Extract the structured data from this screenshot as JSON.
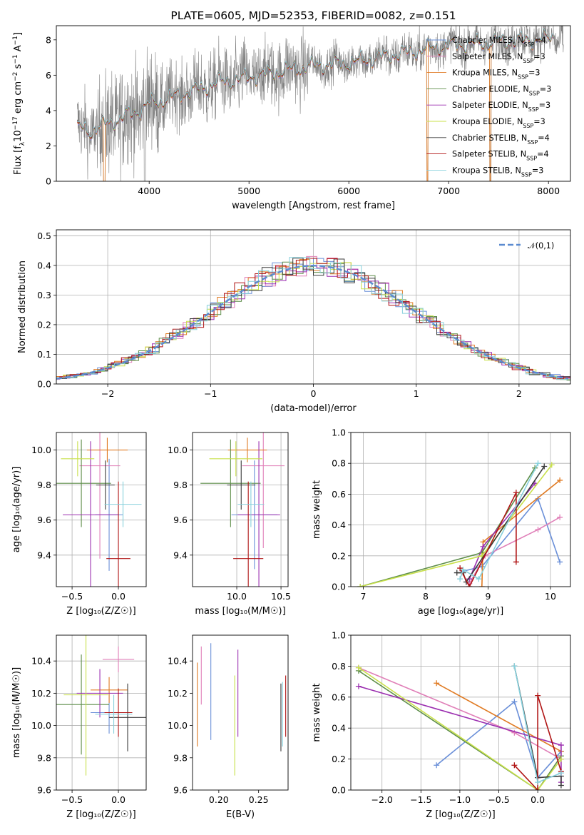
{
  "colors": {
    "chabrier_miles": "#6a8fd8",
    "salpeter_miles": "#e07fb8",
    "kroupa_miles": "#e07a22",
    "chabrier_elodie": "#5e8e4a",
    "salpeter_elodie": "#9b2fb0",
    "kroupa_elodie": "#c8e04a",
    "chabrier_stelib": "#3a3a3a",
    "salpeter_stelib": "#b01515",
    "kroupa_stelib": "#86d0dc",
    "spectrum_obs": "#808080",
    "gaussian": "#5b8bd0"
  },
  "chart_data": [
    {
      "type": "line",
      "title": "PLATE=0605, MJD=52353, FIBERID=0082, z=0.151",
      "xlabel": "wavelength [Angstrom, rest frame]",
      "ylabel_html": "Flux [f_λ 10^{-17} erg cm^{-2} s^{-1} A^{-1}]",
      "xlim": [
        3070,
        8220
      ],
      "ylim": [
        0,
        8.8
      ],
      "xticks": [
        "4000",
        "5000",
        "6000",
        "7000",
        "8000"
      ],
      "yticks": [
        "0",
        "2",
        "4",
        "6",
        "8"
      ],
      "grid": false,
      "legend_position": "top-right",
      "legend": [
        {
          "pre": "Chabrier MILES, N",
          "sub": "SSP",
          "post": "=4",
          "color_key": "chabrier_miles"
        },
        {
          "pre": "Salpeter MILES, N",
          "sub": "SSP",
          "post": "=3",
          "color_key": "salpeter_miles"
        },
        {
          "pre": "Kroupa MILES, N",
          "sub": "SSP",
          "post": "=3",
          "color_key": "kroupa_miles"
        },
        {
          "pre": "Chabrier ELODIE, N",
          "sub": "SSP",
          "post": "=3",
          "color_key": "chabrier_elodie"
        },
        {
          "pre": "Salpeter ELODIE, N",
          "sub": "SSP",
          "post": "=3",
          "color_key": "salpeter_elodie"
        },
        {
          "pre": "Kroupa ELODIE, N",
          "sub": "SSP",
          "post": "=3",
          "color_key": "kroupa_elodie"
        },
        {
          "pre": "Chabrier STELIB, N",
          "sub": "SSP",
          "post": "=4",
          "color_key": "chabrier_stelib"
        },
        {
          "pre": "Salpeter STELIB, N",
          "sub": "SSP",
          "post": "=4",
          "color_key": "salpeter_stelib"
        },
        {
          "pre": "Kroupa STELIB, N",
          "sub": "SSP",
          "post": "=3",
          "color_key": "kroupa_stelib"
        }
      ],
      "model_continuum_points": [
        [
          3280,
          3.1
        ],
        [
          3400,
          2.8
        ],
        [
          3550,
          3.2
        ],
        [
          3700,
          3.5
        ],
        [
          3800,
          3.8
        ],
        [
          3900,
          4.0
        ],
        [
          4000,
          4.4
        ],
        [
          4100,
          4.5
        ],
        [
          4200,
          4.7
        ],
        [
          4300,
          4.9
        ],
        [
          4500,
          5.2
        ],
        [
          4700,
          5.6
        ],
        [
          4860,
          5.7
        ],
        [
          5000,
          5.9
        ],
        [
          5200,
          6.1
        ],
        [
          5400,
          6.3
        ],
        [
          5600,
          6.5
        ],
        [
          5800,
          6.6
        ],
        [
          6000,
          6.7
        ],
        [
          6200,
          6.9
        ],
        [
          6400,
          7.1
        ],
        [
          6600,
          7.3
        ],
        [
          6800,
          7.5
        ],
        [
          7000,
          7.7
        ],
        [
          7300,
          7.8
        ],
        [
          7500,
          7.9
        ],
        [
          7800,
          8.0
        ],
        [
          8050,
          8.1
        ]
      ],
      "model_range": [
        3280,
        8050
      ],
      "observed_range": [
        3280,
        8150
      ],
      "observed_noise_scale": 1.4
    },
    {
      "type": "bar",
      "subtype": "step-histogram",
      "xlabel": "(data-model)/error",
      "ylabel": "Normed distribution",
      "xlim": [
        -2.5,
        2.5
      ],
      "ylim": [
        0,
        0.52
      ],
      "xticks": [
        "−2",
        "−1",
        "0",
        "1",
        "2"
      ],
      "yticks": [
        "0.0",
        "0.1",
        "0.2",
        "0.3",
        "0.4",
        "0.5"
      ],
      "grid": true,
      "legend_position": "top-right",
      "legend": "𝒩(0,1)",
      "bin_width": 0.1
    },
    {
      "type": "scatter",
      "subtype": "error-bars",
      "xlabel": "Z [log₁₀(Z/Z☉)]",
      "ylabel": "age  [log₁₀(age/yr)]",
      "xlim": [
        -0.67,
        0.3
      ],
      "ylim": [
        9.22,
        10.1
      ],
      "xticks": [
        "−0.5",
        "0.0"
      ],
      "yticks": [
        "9.4",
        "9.6",
        "9.8",
        "10.0"
      ],
      "grid": true,
      "points": [
        {
          "k": "chabrier_miles",
          "x": -0.1,
          "y": 9.63,
          "xe": 0.15,
          "ye": 0.32
        },
        {
          "k": "salpeter_miles",
          "x": -0.2,
          "y": 9.91,
          "xe": 0.22,
          "ye": 0.53
        },
        {
          "k": "kroupa_miles",
          "x": -0.12,
          "y": 10.0,
          "xe": 0.22,
          "ye": 0.07
        },
        {
          "k": "chabrier_elodie",
          "x": -0.4,
          "y": 9.81,
          "xe": 0.32,
          "ye": 0.25
        },
        {
          "k": "salpeter_elodie",
          "x": -0.3,
          "y": 9.63,
          "xe": 0.3,
          "ye": 0.42
        },
        {
          "k": "kroupa_elodie",
          "x": -0.44,
          "y": 9.95,
          "xe": 0.18,
          "ye": 0.1
        },
        {
          "k": "chabrier_stelib",
          "x": -0.14,
          "y": 9.8,
          "xe": 0.1,
          "ye": 0.14
        },
        {
          "k": "salpeter_stelib",
          "x": 0.0,
          "y": 9.38,
          "xe": 0.13,
          "ye": 0.44
        },
        {
          "k": "kroupa_stelib",
          "x": 0.05,
          "y": 9.69,
          "xe": 0.2,
          "ye": 0.13
        }
      ]
    },
    {
      "type": "scatter",
      "subtype": "error-bars",
      "xlabel": "mass [log₁₀(M/M☉)]",
      "ylabel": "",
      "xlim": [
        9.5,
        10.58
      ],
      "ylim": [
        9.22,
        10.1
      ],
      "xticks": [
        "10.0",
        "10.5"
      ],
      "yticks": [
        "9.4",
        "9.6",
        "9.8",
        "10.0"
      ],
      "grid": true,
      "points": [
        {
          "k": "chabrier_miles",
          "x": 10.2,
          "y": 9.63,
          "xe": 0.26,
          "ye": 0.31
        },
        {
          "k": "salpeter_miles",
          "x": 10.3,
          "y": 9.91,
          "xe": 0.24,
          "ye": 0.47
        },
        {
          "k": "kroupa_miles",
          "x": 10.12,
          "y": 10.0,
          "xe": 0.22,
          "ye": 0.07
        },
        {
          "k": "chabrier_elodie",
          "x": 9.93,
          "y": 9.81,
          "xe": 0.34,
          "ye": 0.25
        },
        {
          "k": "salpeter_elodie",
          "x": 10.25,
          "y": 9.63,
          "xe": 0.24,
          "ye": 0.42
        },
        {
          "k": "kroupa_elodie",
          "x": 9.99,
          "y": 9.95,
          "xe": 0.3,
          "ye": 0.1
        },
        {
          "k": "chabrier_stelib",
          "x": 10.05,
          "y": 9.8,
          "xe": 0.16,
          "ye": 0.14
        },
        {
          "k": "salpeter_stelib",
          "x": 10.13,
          "y": 9.38,
          "xe": 0.17,
          "ye": 0.44
        },
        {
          "k": "kroupa_stelib",
          "x": 10.16,
          "y": 9.69,
          "xe": 0.15,
          "ye": 0.13
        }
      ]
    },
    {
      "type": "line",
      "xlabel": "age  [log₁₀(age/yr)]",
      "ylabel": "mass weight",
      "xlim": [
        6.8,
        10.32
      ],
      "ylim": [
        0,
        1
      ],
      "xticks": [
        "7",
        "8",
        "9",
        "10"
      ],
      "yticks": [
        "0.0",
        "0.2",
        "0.4",
        "0.6",
        "0.8",
        "1.0"
      ],
      "grid": true,
      "series": [
        {
          "k": "chabrier_miles",
          "pts": [
            [
              8.6,
              0.1
            ],
            [
              8.9,
              0.13
            ],
            [
              9.8,
              0.57
            ],
            [
              10.15,
              0.16
            ]
          ]
        },
        {
          "k": "salpeter_miles",
          "pts": [
            [
              8.7,
              0.02
            ],
            [
              8.95,
              0.2
            ],
            [
              9.8,
              0.37
            ],
            [
              10.15,
              0.45
            ]
          ]
        },
        {
          "k": "kroupa_miles",
          "pts": [
            [
              8.9,
              0.0
            ],
            [
              8.92,
              0.29
            ],
            [
              10.15,
              0.69
            ]
          ]
        },
        {
          "k": "chabrier_elodie",
          "pts": [
            [
              6.95,
              0.0
            ],
            [
              8.9,
              0.22
            ],
            [
              9.75,
              0.77
            ]
          ]
        },
        {
          "k": "salpeter_elodie",
          "pts": [
            [
              8.7,
              0.05
            ],
            [
              8.92,
              0.26
            ],
            [
              9.75,
              0.67
            ]
          ]
        },
        {
          "k": "kroupa_elodie",
          "pts": [
            [
              6.95,
              0.0
            ],
            [
              8.9,
              0.2
            ],
            [
              10.02,
              0.79
            ]
          ]
        },
        {
          "k": "chabrier_stelib",
          "pts": [
            [
              8.5,
              0.09
            ],
            [
              8.6,
              0.09
            ],
            [
              8.65,
              0.03
            ],
            [
              9.9,
              0.78
            ]
          ]
        },
        {
          "k": "salpeter_stelib",
          "pts": [
            [
              8.55,
              0.12
            ],
            [
              8.7,
              0.0
            ],
            [
              9.45,
              0.61
            ],
            [
              9.45,
              0.16
            ]
          ]
        },
        {
          "k": "kroupa_stelib",
          "pts": [
            [
              8.55,
              0.05
            ],
            [
              8.6,
              0.11
            ],
            [
              8.85,
              0.05
            ],
            [
              9.8,
              0.8
            ]
          ]
        }
      ]
    },
    {
      "type": "scatter",
      "subtype": "error-bars",
      "xlabel": "Z [log₁₀(Z/Z☉)]",
      "ylabel": "mass [log₁₀(M/M☉)]",
      "xlim": [
        -0.67,
        0.3
      ],
      "ylim": [
        9.6,
        10.56
      ],
      "xticks": [
        "−0.5",
        "0.0"
      ],
      "yticks": [
        "9.6",
        "9.8",
        "10.0",
        "10.2",
        "10.4"
      ],
      "grid": true,
      "points": [
        {
          "k": "chabrier_miles",
          "x": -0.1,
          "y": 10.08,
          "xe": 0.2,
          "ye": 0.13
        },
        {
          "k": "salpeter_miles",
          "x": 0.0,
          "y": 10.41,
          "xe": 0.17,
          "ye": 0.08
        },
        {
          "k": "kroupa_miles",
          "x": -0.1,
          "y": 10.22,
          "xe": 0.2,
          "ye": 0.08
        },
        {
          "k": "chabrier_elodie",
          "x": -0.4,
          "y": 10.13,
          "xe": 0.3,
          "ye": 0.31
        },
        {
          "k": "salpeter_elodie",
          "x": -0.2,
          "y": 10.2,
          "xe": 0.25,
          "ye": 0.15
        },
        {
          "k": "kroupa_elodie",
          "x": -0.35,
          "y": 10.19,
          "xe": 0.24,
          "ye": 0.5
        },
        {
          "k": "chabrier_stelib",
          "x": 0.1,
          "y": 10.05,
          "xe": 0.2,
          "ye": 0.21
        },
        {
          "k": "salpeter_stelib",
          "x": 0.0,
          "y": 10.08,
          "xe": 0.15,
          "ye": 0.15
        },
        {
          "k": "kroupa_stelib",
          "x": -0.05,
          "y": 10.07,
          "xe": 0.2,
          "ye": 0.12
        }
      ]
    },
    {
      "type": "scatter",
      "subtype": "error-bars",
      "xlabel": "E(B-V)",
      "ylabel": "",
      "xlim": [
        0.167,
        0.287
      ],
      "ylim": [
        9.6,
        10.56
      ],
      "xticks": [
        "0.20",
        "0.25"
      ],
      "yticks": [
        "9.6",
        "9.8",
        "10.0",
        "10.2",
        "10.4"
      ],
      "grid": false,
      "points": [
        {
          "k": "kroupa_miles",
          "x": 0.173,
          "y": 10.13,
          "ye": 0.26
        },
        {
          "k": "salpeter_miles",
          "x": 0.178,
          "y": 10.31,
          "ye": 0.18
        },
        {
          "k": "chabrier_miles",
          "x": 0.19,
          "y": 10.21,
          "ye": 0.3
        },
        {
          "k": "kroupa_elodie",
          "x": 0.22,
          "y": 10.0,
          "ye": 0.31
        },
        {
          "k": "salpeter_elodie",
          "x": 0.224,
          "y": 10.2,
          "ye": 0.27
        },
        {
          "k": "chabrier_stelib",
          "x": 0.278,
          "y": 10.05,
          "ye": 0.21
        },
        {
          "k": "kroupa_stelib",
          "x": 0.28,
          "y": 10.07,
          "ye": 0.2
        },
        {
          "k": "salpeter_stelib",
          "x": 0.284,
          "y": 10.12,
          "ye": 0.19
        }
      ]
    },
    {
      "type": "line",
      "xlabel": "Z [log₁₀(Z/Z☉)]",
      "ylabel": "mass weight",
      "xlim": [
        -2.4,
        0.42
      ],
      "ylim": [
        0,
        1
      ],
      "xticks": [
        "−2.0",
        "−1.5",
        "−1.0",
        "−0.5",
        "0.0"
      ],
      "yticks": [
        "0.0",
        "0.2",
        "0.4",
        "0.6",
        "0.8",
        "1.0"
      ],
      "grid": true,
      "series": [
        {
          "k": "chabrier_miles",
          "pts": [
            [
              -1.3,
              0.16
            ],
            [
              -0.3,
              0.57
            ],
            [
              0.0,
              0.08
            ],
            [
              0.3,
              0.25
            ]
          ]
        },
        {
          "k": "salpeter_miles",
          "pts": [
            [
              -2.3,
              0.79
            ],
            [
              -0.3,
              0.37
            ],
            [
              0.3,
              0.2
            ]
          ]
        },
        {
          "k": "kroupa_miles",
          "pts": [
            [
              -1.3,
              0.69
            ],
            [
              0.3,
              0.25
            ]
          ]
        },
        {
          "k": "chabrier_elodie",
          "pts": [
            [
              -2.3,
              0.77
            ],
            [
              0.0,
              0.0
            ],
            [
              0.3,
              0.22
            ]
          ]
        },
        {
          "k": "salpeter_elodie",
          "pts": [
            [
              -2.3,
              0.67
            ],
            [
              0.3,
              0.29
            ],
            [
              0.3,
              0.05
            ]
          ]
        },
        {
          "k": "kroupa_elodie",
          "pts": [
            [
              -2.3,
              0.79
            ],
            [
              0.0,
              0.0
            ],
            [
              0.3,
              0.2
            ]
          ]
        },
        {
          "k": "chabrier_stelib",
          "pts": [
            [
              -0.3,
              0.8
            ],
            [
              0.0,
              0.08
            ],
            [
              0.3,
              0.09
            ],
            [
              0.3,
              0.03
            ]
          ]
        },
        {
          "k": "salpeter_stelib",
          "pts": [
            [
              -0.3,
              0.16
            ],
            [
              0.0,
              0.0
            ],
            [
              0.0,
              0.61
            ],
            [
              0.3,
              0.12
            ]
          ]
        },
        {
          "k": "kroupa_stelib",
          "pts": [
            [
              -0.3,
              0.8
            ],
            [
              0.0,
              0.05
            ],
            [
              0.3,
              0.11
            ]
          ]
        }
      ]
    }
  ]
}
